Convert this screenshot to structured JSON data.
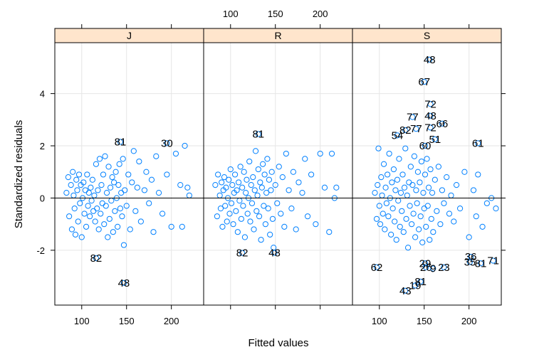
{
  "chart_data": {
    "type": "scatter",
    "xlabel": "Fitted values",
    "ylabel": "Standardized residuals",
    "xlim": [
      70,
      236
    ],
    "ylim": [
      -4.1,
      5.95
    ],
    "x_ticks": [
      100,
      150,
      200
    ],
    "x_tick_labels": [
      "100",
      "150",
      "200"
    ],
    "y_ticks": [
      -2,
      0,
      2,
      4
    ],
    "y_tick_labels": [
      "-2",
      "0",
      "2",
      "4"
    ],
    "reference_line_y": 0,
    "grid": true,
    "colors": {
      "points": "#0080ff",
      "strip": "#ffe5cc",
      "grid": "#e6e6e6",
      "frame": "#000000"
    },
    "panels": [
      {
        "strip_label": "J",
        "labelled_points": [
          {
            "label": "81",
            "x": 143,
            "y": 2.15
          },
          {
            "label": "30",
            "x": 195,
            "y": 2.1
          },
          {
            "label": "82",
            "x": 116,
            "y": -2.3
          },
          {
            "label": "48",
            "x": 147,
            "y": -3.25
          }
        ],
        "points": [
          [
            83,
            0.2
          ],
          [
            85,
            0.8
          ],
          [
            86,
            -0.7
          ],
          [
            88,
            0.5
          ],
          [
            89,
            -1.2
          ],
          [
            90,
            1.0
          ],
          [
            91,
            0.1
          ],
          [
            92,
            -0.4
          ],
          [
            93,
            -1.4
          ],
          [
            94,
            0.7
          ],
          [
            95,
            0.3
          ],
          [
            96,
            -0.9
          ],
          [
            97,
            0.9
          ],
          [
            98,
            -0.2
          ],
          [
            99,
            0.5
          ],
          [
            100,
            -1.5
          ],
          [
            101,
            0.0
          ],
          [
            102,
            0.6
          ],
          [
            103,
            -0.6
          ],
          [
            104,
            0.3
          ],
          [
            105,
            -1.1
          ],
          [
            106,
            0.9
          ],
          [
            107,
            -0.3
          ],
          [
            108,
            0.2
          ],
          [
            109,
            -0.7
          ],
          [
            110,
            0.4
          ],
          [
            111,
            -0.1
          ],
          [
            112,
            0.7
          ],
          [
            113,
            -0.5
          ],
          [
            114,
            0.1
          ],
          [
            115,
            -0.9
          ],
          [
            116,
            1.3
          ],
          [
            117,
            -0.4
          ],
          [
            118,
            0.3
          ],
          [
            119,
            -1.2
          ],
          [
            120,
            1.5
          ],
          [
            121,
            -0.6
          ],
          [
            122,
            0.5
          ],
          [
            123,
            -0.2
          ],
          [
            124,
            0.9
          ],
          [
            125,
            -1.0
          ],
          [
            126,
            1.6
          ],
          [
            127,
            -0.3
          ],
          [
            128,
            0.2
          ],
          [
            129,
            -1.5
          ],
          [
            130,
            1.2
          ],
          [
            131,
            -0.8
          ],
          [
            132,
            0.4
          ],
          [
            133,
            -0.1
          ],
          [
            134,
            0.8
          ],
          [
            135,
            -1.3
          ],
          [
            136,
            0.6
          ],
          [
            137,
            -0.5
          ],
          [
            138,
            1.0
          ],
          [
            139,
            0.0
          ],
          [
            140,
            -1.1
          ],
          [
            141,
            0.5
          ],
          [
            142,
            1.3
          ],
          [
            143,
            -0.4
          ],
          [
            144,
            0.2
          ],
          [
            145,
            -0.7
          ],
          [
            146,
            1.5
          ],
          [
            147,
            -1.8
          ],
          [
            148,
            0.3
          ],
          [
            150,
            -0.3
          ],
          [
            152,
            0.9
          ],
          [
            154,
            -1.2
          ],
          [
            156,
            0.6
          ],
          [
            158,
            1.8
          ],
          [
            160,
            -0.5
          ],
          [
            162,
            0.4
          ],
          [
            164,
            1.4
          ],
          [
            166,
            -0.9
          ],
          [
            170,
            0.3
          ],
          [
            172,
            1.0
          ],
          [
            175,
            -0.2
          ],
          [
            178,
            0.7
          ],
          [
            180,
            -1.3
          ],
          [
            183,
            1.6
          ],
          [
            186,
            0.2
          ],
          [
            190,
            -0.6
          ],
          [
            195,
            0.9
          ],
          [
            200,
            -1.1
          ],
          [
            205,
            1.7
          ],
          [
            210,
            0.5
          ],
          [
            212,
            -1.1
          ],
          [
            215,
            2.0
          ],
          [
            218,
            0.4
          ],
          [
            220,
            0.1
          ]
        ]
      },
      {
        "strip_label": "R",
        "labelled_points": [
          {
            "label": "81",
            "x": 131,
            "y": 2.45
          },
          {
            "label": "82",
            "x": 113,
            "y": -2.1
          },
          {
            "label": "48",
            "x": 149,
            "y": -2.1
          }
        ],
        "points": [
          [
            83,
            0.5
          ],
          [
            85,
            -0.7
          ],
          [
            86,
            0.9
          ],
          [
            88,
            0.1
          ],
          [
            89,
            -0.4
          ],
          [
            90,
            0.6
          ],
          [
            91,
            -1.1
          ],
          [
            92,
            0.3
          ],
          [
            93,
            0.8
          ],
          [
            94,
            -0.3
          ],
          [
            95,
            0.4
          ],
          [
            96,
            -0.9
          ],
          [
            97,
            0.0
          ],
          [
            98,
            0.7
          ],
          [
            99,
            -0.6
          ],
          [
            100,
            1.1
          ],
          [
            101,
            -0.2
          ],
          [
            102,
            0.5
          ],
          [
            103,
            -1.0
          ],
          [
            104,
            0.2
          ],
          [
            105,
            0.9
          ],
          [
            106,
            -0.5
          ],
          [
            107,
            0.3
          ],
          [
            108,
            -1.3
          ],
          [
            109,
            0.6
          ],
          [
            110,
            -0.1
          ],
          [
            111,
            1.2
          ],
          [
            112,
            -0.8
          ],
          [
            113,
            0.4
          ],
          [
            114,
            -0.3
          ],
          [
            115,
            1.0
          ],
          [
            116,
            -1.5
          ],
          [
            117,
            0.2
          ],
          [
            118,
            0.7
          ],
          [
            119,
            -0.6
          ],
          [
            120,
            0.0
          ],
          [
            121,
            1.4
          ],
          [
            122,
            -0.9
          ],
          [
            123,
            0.5
          ],
          [
            124,
            -0.2
          ],
          [
            125,
            0.8
          ],
          [
            126,
            -1.2
          ],
          [
            127,
            0.3
          ],
          [
            128,
            1.8
          ],
          [
            129,
            -0.5
          ],
          [
            130,
            0.1
          ],
          [
            131,
            1.1
          ],
          [
            132,
            -0.7
          ],
          [
            133,
            0.6
          ],
          [
            134,
            -1.6
          ],
          [
            135,
            0.4
          ],
          [
            136,
            1.3
          ],
          [
            137,
            -0.3
          ],
          [
            138,
            0.9
          ],
          [
            139,
            -1.0
          ],
          [
            140,
            0.2
          ],
          [
            141,
            1.5
          ],
          [
            142,
            -0.4
          ],
          [
            143,
            0.7
          ],
          [
            144,
            -1.4
          ],
          [
            145,
            0.3
          ],
          [
            146,
            1.0
          ],
          [
            147,
            -0.8
          ],
          [
            148,
            -1.9
          ],
          [
            150,
            0.5
          ],
          [
            152,
            -0.2
          ],
          [
            154,
            1.2
          ],
          [
            156,
            -0.6
          ],
          [
            158,
            0.8
          ],
          [
            160,
            -1.1
          ],
          [
            162,
            1.7
          ],
          [
            165,
            0.3
          ],
          [
            168,
            -0.4
          ],
          [
            170,
            1.0
          ],
          [
            173,
            -1.2
          ],
          [
            176,
            0.6
          ],
          [
            180,
            0.2
          ],
          [
            183,
            1.5
          ],
          [
            186,
            -0.7
          ],
          [
            190,
            0.9
          ],
          [
            195,
            -1.0
          ],
          [
            200,
            1.7
          ],
          [
            205,
            0.4
          ],
          [
            210,
            -1.3
          ],
          [
            213,
            1.7
          ],
          [
            216,
            0.0
          ],
          [
            218,
            0.4
          ]
        ]
      },
      {
        "strip_label": "S",
        "labelled_points": [
          {
            "label": "48",
            "x": 156,
            "y": 5.3
          },
          {
            "label": "67",
            "x": 150,
            "y": 4.45
          },
          {
            "label": "72",
            "x": 157,
            "y": 3.6
          },
          {
            "label": "77",
            "x": 137,
            "y": 3.1
          },
          {
            "label": "77",
            "x": 141,
            "y": 2.65
          },
          {
            "label": "82",
            "x": 129,
            "y": 2.6
          },
          {
            "label": "54",
            "x": 120,
            "y": 2.4
          },
          {
            "label": "48",
            "x": 157,
            "y": 3.15
          },
          {
            "label": "72",
            "x": 157,
            "y": 2.7
          },
          {
            "label": "66",
            "x": 170,
            "y": 2.85
          },
          {
            "label": "51",
            "x": 162,
            "y": 2.25
          },
          {
            "label": "60",
            "x": 151,
            "y": 2.0
          },
          {
            "label": "61",
            "x": 210,
            "y": 2.1
          },
          {
            "label": "62",
            "x": 97,
            "y": -2.65
          },
          {
            "label": "29",
            "x": 151,
            "y": -2.5
          },
          {
            "label": "26",
            "x": 152,
            "y": -2.65
          },
          {
            "label": "9",
            "x": 160,
            "y": -2.7
          },
          {
            "label": "23",
            "x": 172,
            "y": -2.65
          },
          {
            "label": "36",
            "x": 202,
            "y": -2.25
          },
          {
            "label": "35",
            "x": 201,
            "y": -2.45
          },
          {
            "label": "81",
            "x": 213,
            "y": -2.5
          },
          {
            "label": "71",
            "x": 227,
            "y": -2.4
          },
          {
            "label": "81",
            "x": 146,
            "y": -3.2
          },
          {
            "label": "19",
            "x": 140,
            "y": -3.35
          },
          {
            "label": "43",
            "x": 129,
            "y": -3.55
          }
        ],
        "points": [
          [
            95,
            0.2
          ],
          [
            97,
            -0.8
          ],
          [
            98,
            0.5
          ],
          [
            99,
            1.9
          ],
          [
            100,
            -0.3
          ],
          [
            101,
            -1.0
          ],
          [
            102,
            0.8
          ],
          [
            103,
            0.1
          ],
          [
            104,
            -0.6
          ],
          [
            105,
            1.3
          ],
          [
            106,
            -1.2
          ],
          [
            107,
            0.4
          ],
          [
            108,
            -0.2
          ],
          [
            109,
            0.9
          ],
          [
            110,
            -0.7
          ],
          [
            111,
            1.7
          ],
          [
            112,
            0.0
          ],
          [
            113,
            -1.4
          ],
          [
            114,
            0.6
          ],
          [
            115,
            -0.4
          ],
          [
            116,
            1.1
          ],
          [
            117,
            -0.9
          ],
          [
            118,
            0.3
          ],
          [
            119,
            -1.6
          ],
          [
            120,
            0.7
          ],
          [
            121,
            -0.1
          ],
          [
            122,
            1.5
          ],
          [
            123,
            -1.1
          ],
          [
            124,
            0.2
          ],
          [
            125,
            -0.5
          ],
          [
            126,
            0.9
          ],
          [
            127,
            -1.3
          ],
          [
            128,
            0.4
          ],
          [
            129,
            1.9
          ],
          [
            130,
            -0.8
          ],
          [
            131,
            0.1
          ],
          [
            132,
            -1.9
          ],
          [
            133,
            0.6
          ],
          [
            134,
            -0.3
          ],
          [
            135,
            1.2
          ],
          [
            136,
            -1.0
          ],
          [
            137,
            0.5
          ],
          [
            138,
            -0.6
          ],
          [
            139,
            1.6
          ],
          [
            140,
            -1.5
          ],
          [
            141,
            0.3
          ],
          [
            142,
            -0.2
          ],
          [
            143,
            1.0
          ],
          [
            144,
            -1.2
          ],
          [
            145,
            0.6
          ],
          [
            146,
            -0.7
          ],
          [
            147,
            1.4
          ],
          [
            148,
            -1.7
          ],
          [
            149,
            0.2
          ],
          [
            150,
            -0.4
          ],
          [
            151,
            0.9
          ],
          [
            152,
            -1.1
          ],
          [
            153,
            1.5
          ],
          [
            154,
            -0.3
          ],
          [
            155,
            0.4
          ],
          [
            156,
            -1.6
          ],
          [
            157,
            1.1
          ],
          [
            158,
            -0.8
          ],
          [
            159,
            0.2
          ],
          [
            160,
            -1.3
          ],
          [
            162,
            0.7
          ],
          [
            164,
            -0.5
          ],
          [
            166,
            1.2
          ],
          [
            168,
            -1.0
          ],
          [
            170,
            0.3
          ],
          [
            172,
            -0.2
          ],
          [
            175,
            0.8
          ],
          [
            178,
            -0.6
          ],
          [
            180,
            0.1
          ],
          [
            183,
            -0.9
          ],
          [
            186,
            0.5
          ],
          [
            190,
            -0.4
          ],
          [
            195,
            1.0
          ],
          [
            200,
            -1.5
          ],
          [
            205,
            0.3
          ],
          [
            208,
            -0.7
          ],
          [
            210,
            0.9
          ],
          [
            215,
            -1.1
          ],
          [
            220,
            -0.2
          ],
          [
            225,
            0.0
          ],
          [
            230,
            -0.4
          ]
        ]
      }
    ]
  }
}
